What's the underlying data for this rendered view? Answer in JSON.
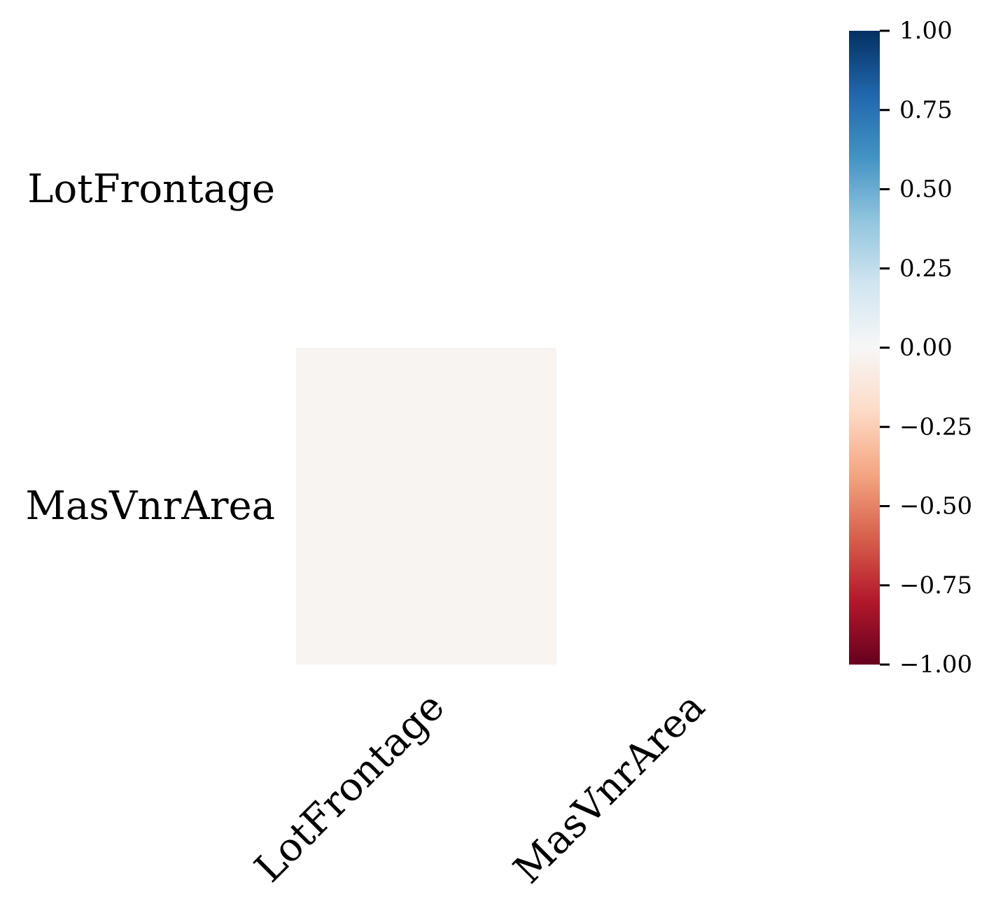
{
  "chart_data": {
    "type": "heatmap",
    "title": "",
    "xlabel": "",
    "ylabel": "",
    "rows": [
      "LotFrontage",
      "MasVnrArea"
    ],
    "columns": [
      "LotFrontage",
      "MasVnrArea"
    ],
    "values": [
      [
        null,
        null
      ],
      [
        -0.02,
        null
      ]
    ],
    "mask": "upper-triangle-including-diagonal",
    "colormap": "RdBu",
    "vmin": -1.0,
    "vmax": 1.0,
    "colorbar": {
      "position": "right",
      "ticks": [
        1.0,
        0.75,
        0.5,
        0.25,
        0.0,
        -0.25,
        -0.5,
        -0.75,
        -1.0
      ],
      "tick_labels": [
        "1.00",
        "0.75",
        "0.50",
        "0.25",
        "0.00",
        "−0.25",
        "−0.50",
        "−0.75",
        "−1.00"
      ]
    },
    "grid": false
  }
}
